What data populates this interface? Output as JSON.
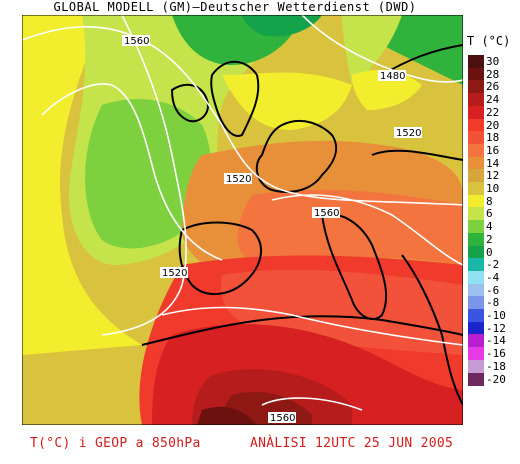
{
  "title": "GLOBAL MODELL (GM)—Deutscher Wetterdienst (DWD)",
  "legend": {
    "title": "T (°C)",
    "entries": [
      {
        "label": "30",
        "color": "#4a0f0f"
      },
      {
        "label": "28",
        "color": "#6b1210"
      },
      {
        "label": "26",
        "color": "#8e1914"
      },
      {
        "label": "24",
        "color": "#b71c1c"
      },
      {
        "label": "22",
        "color": "#d62021"
      },
      {
        "label": "20",
        "color": "#ef3a2c"
      },
      {
        "label": "18",
        "color": "#f2523a"
      },
      {
        "label": "16",
        "color": "#f3743e"
      },
      {
        "label": "14",
        "color": "#e88f3a"
      },
      {
        "label": "12",
        "color": "#d8a53c"
      },
      {
        "label": "10",
        "color": "#d8c23e"
      },
      {
        "label": "8",
        "color": "#f3ee2d"
      },
      {
        "label": "6",
        "color": "#c5e34a"
      },
      {
        "label": "4",
        "color": "#7ed13e"
      },
      {
        "label": "2",
        "color": "#2fb33c"
      },
      {
        "label": "0",
        "color": "#14a24a"
      },
      {
        "label": "-2",
        "color": "#1bb7a6"
      },
      {
        "label": "-4",
        "color": "#8fe0f0"
      },
      {
        "label": "-6",
        "color": "#9ec0ef"
      },
      {
        "label": "-8",
        "color": "#7a95ea"
      },
      {
        "label": "-10",
        "color": "#3a55e0"
      },
      {
        "label": "-12",
        "color": "#1a24c8"
      },
      {
        "label": "-14",
        "color": "#b71fd0"
      },
      {
        "label": "-16",
        "color": "#e53ae6"
      },
      {
        "label": "-18",
        "color": "#c79bd3"
      },
      {
        "label": "-20",
        "color": "#6d2a5f"
      }
    ]
  },
  "contour_labels": [
    "1560",
    "1480",
    "1520",
    "1520",
    "1560",
    "1520",
    "1560"
  ],
  "footer": {
    "left": "T(°C) i GEOP a 850hPa",
    "right": "ANÀLISI 12UTC 25 JUN 2005"
  }
}
